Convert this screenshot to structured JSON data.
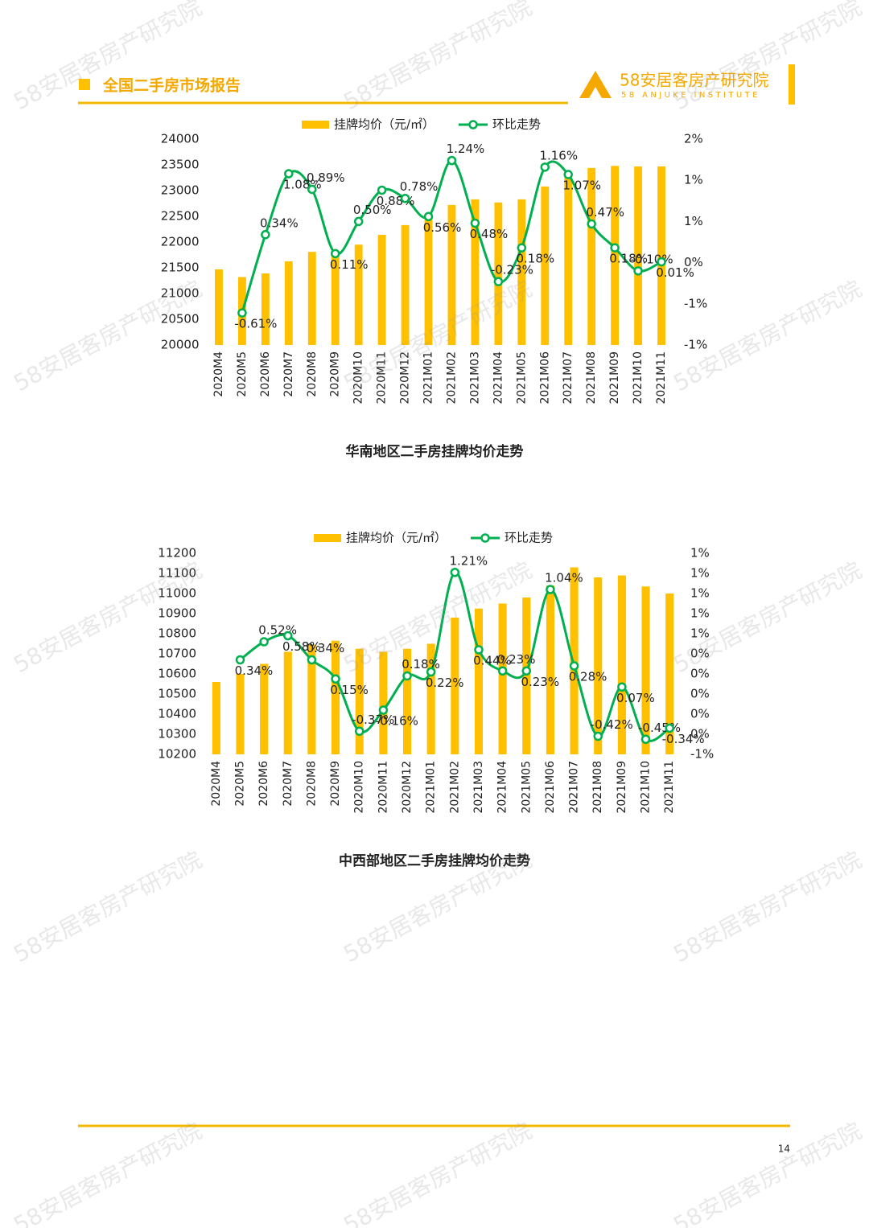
{
  "header": {
    "title": "全国二手房市场报告",
    "logo_name": "58安居客房产研究院",
    "logo_en": "58 ANJUKE INSTITUTE"
  },
  "watermark": "58安居客房产研究院",
  "chart_data": [
    {
      "type": "combo",
      "title": "华南地区二手房挂牌均价走势",
      "legend": "top",
      "grid": false,
      "categories": [
        "2020M4",
        "2020M5",
        "2020M6",
        "2020M7",
        "2020M8",
        "2020M9",
        "2020M10",
        "2020M11",
        "2020M12",
        "2021M01",
        "2021M02",
        "2021M03",
        "2021M04",
        "2021M05",
        "2021M06",
        "2021M07",
        "2021M08",
        "2021M09",
        "2021M10",
        "2021M11"
      ],
      "series": [
        {
          "name": "挂牌均价（元/㎡）",
          "kind": "bar",
          "color": "#FFC000",
          "values": [
            21470,
            21320,
            21390,
            21625,
            21810,
            21780,
            21950,
            22140,
            22330,
            22520,
            22720,
            22830,
            22770,
            22830,
            23080,
            23310,
            23440,
            23480,
            23470,
            23470
          ]
        },
        {
          "name": "环比走势",
          "kind": "line",
          "axis": "y2",
          "color": "#00B050",
          "values": [
            null,
            -0.61,
            0.34,
            1.08,
            0.89,
            0.11,
            0.5,
            0.88,
            0.78,
            0.56,
            1.24,
            0.48,
            -0.23,
            0.18,
            1.16,
            1.07,
            0.47,
            0.18,
            -0.1,
            0.01
          ],
          "value_labels": [
            null,
            "-0.61%",
            "0.34%",
            "1.08%",
            "0.89%",
            "0.11%",
            "0.50%",
            "0.88%",
            "0.78%",
            "0.56%",
            "1.24%",
            "0.48%",
            "-0.23%",
            "0.18%",
            "1.16%",
            "1.07%",
            "0.47%",
            "0.18%",
            "-0.10%",
            "0.01%"
          ]
        }
      ],
      "ylim": [
        20000,
        24000
      ],
      "yticks": [
        20000,
        20500,
        21000,
        21500,
        22000,
        22500,
        23000,
        23500,
        24000
      ],
      "y2lim": [
        -1.0,
        1.5
      ],
      "y2ticks": [
        {
          "value": -1.0,
          "label": "-1%"
        },
        {
          "value": -0.5,
          "label": "-1%"
        },
        {
          "value": 0,
          "label": "0%"
        },
        {
          "value": 0.5,
          "label": "1%"
        },
        {
          "value": 1.0,
          "label": "1%"
        },
        {
          "value": 1.5,
          "label": "2%"
        }
      ]
    },
    {
      "type": "combo",
      "title": "中西部地区二手房挂牌均价走势",
      "legend": "top",
      "grid": false,
      "categories": [
        "2020M4",
        "2020M5",
        "2020M6",
        "2020M7",
        "2020M8",
        "2020M9",
        "2020M10",
        "2020M11",
        "2020M12",
        "2021M01",
        "2021M02",
        "2021M03",
        "2021M04",
        "2021M05",
        "2021M06",
        "2021M07",
        "2021M08",
        "2021M09",
        "2021M10",
        "2021M11"
      ],
      "series": [
        {
          "name": "挂牌均价（元/㎡）",
          "kind": "bar",
          "color": "#FFC000",
          "values": [
            10560,
            10600,
            10650,
            10710,
            10745,
            10765,
            10725,
            10710,
            10725,
            10750,
            10880,
            10925,
            10950,
            10980,
            11040,
            11130,
            11080,
            11090,
            11035,
            11000
          ]
        },
        {
          "name": "环比走势",
          "kind": "line",
          "axis": "y2",
          "color": "#00B050",
          "values": [
            null,
            0.34,
            0.52,
            0.58,
            0.34,
            0.15,
            -0.37,
            -0.16,
            0.18,
            0.22,
            1.21,
            0.44,
            0.23,
            0.23,
            1.04,
            0.28,
            -0.42,
            0.07,
            -0.45,
            -0.34
          ],
          "value_labels": [
            null,
            "0.34%",
            "0.52%",
            "0.58%",
            "0.34%",
            "0.15%",
            "-0.37%",
            "-0.16%",
            "0.18%",
            "0.22%",
            "1.21%",
            "0.44%",
            "0.23%",
            "0.23%",
            "1.04%",
            "0.28%",
            "-0.42%",
            "0.07%",
            "-0.45%",
            "-0.34%"
          ]
        }
      ],
      "ylim": [
        10200,
        11200
      ],
      "yticks": [
        10200,
        10300,
        10400,
        10500,
        10600,
        10700,
        10800,
        10900,
        11000,
        11100,
        11200
      ],
      "y2lim": [
        -0.6,
        1.4
      ],
      "y2ticks": [
        {
          "value": -0.6,
          "label": "-1%"
        },
        {
          "value": -0.4,
          "label": "0%"
        },
        {
          "value": -0.2,
          "label": "0%"
        },
        {
          "value": 0,
          "label": "0%"
        },
        {
          "value": 0.2,
          "label": "0%"
        },
        {
          "value": 0.4,
          "label": "0%"
        },
        {
          "value": 0.6,
          "label": "1%"
        },
        {
          "value": 0.8,
          "label": "1%"
        },
        {
          "value": 1.0,
          "label": "1%"
        },
        {
          "value": 1.2,
          "label": "1%"
        },
        {
          "value": 1.4,
          "label": "1%"
        }
      ]
    }
  ],
  "page_number": "14"
}
